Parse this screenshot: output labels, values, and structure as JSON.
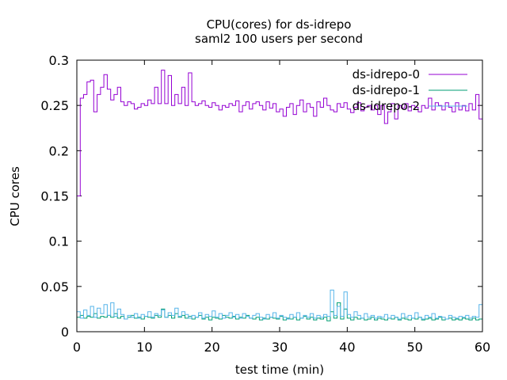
{
  "chart_data": {
    "type": "line",
    "title": "CPU(cores) for ds-idrepo",
    "subtitle": "saml2 100 users per second",
    "xlabel": "test time (min)",
    "ylabel": "CPU cores",
    "xlim": [
      0,
      60
    ],
    "ylim": [
      0,
      0.3
    ],
    "xticks": [
      0,
      10,
      20,
      30,
      40,
      50,
      60
    ],
    "yticks": [
      0,
      0.05,
      0.1,
      0.15,
      0.2,
      0.25,
      0.3
    ],
    "grid": false,
    "legend_position": "top-right",
    "series": [
      {
        "name": "ds-idrepo-0",
        "color": "#9400d3",
        "step": true,
        "x": [
          0,
          0.5,
          1,
          1.5,
          2,
          2.5,
          3,
          3.5,
          4,
          4.5,
          5,
          5.5,
          6,
          6.5,
          7,
          7.5,
          8,
          8.5,
          9,
          9.5,
          10,
          10.5,
          11,
          11.5,
          12,
          12.5,
          13,
          13.5,
          14,
          14.5,
          15,
          15.5,
          16,
          16.5,
          17,
          17.5,
          18,
          18.5,
          19,
          19.5,
          20,
          20.5,
          21,
          21.5,
          22,
          22.5,
          23,
          23.5,
          24,
          24.5,
          25,
          25.5,
          26,
          26.5,
          27,
          27.5,
          28,
          28.5,
          29,
          29.5,
          30,
          30.5,
          31,
          31.5,
          32,
          32.5,
          33,
          33.5,
          34,
          34.5,
          35,
          35.5,
          36,
          36.5,
          37,
          37.5,
          38,
          38.5,
          39,
          39.5,
          40,
          40.5,
          41,
          41.5,
          42,
          42.5,
          43,
          43.5,
          44,
          44.5,
          45,
          45.5,
          46,
          46.5,
          47,
          47.5,
          48,
          48.5,
          49,
          49.5,
          50,
          50.5,
          51,
          51.5,
          52,
          52.5,
          53,
          53.5,
          54,
          54.5,
          55,
          55.5,
          56,
          56.5,
          57,
          57.5,
          58,
          58.5,
          59,
          59.5
        ],
        "y": [
          0.15,
          0.258,
          0.262,
          0.276,
          0.278,
          0.243,
          0.262,
          0.27,
          0.284,
          0.268,
          0.256,
          0.262,
          0.27,
          0.254,
          0.25,
          0.254,
          0.252,
          0.246,
          0.248,
          0.252,
          0.25,
          0.256,
          0.252,
          0.27,
          0.252,
          0.289,
          0.252,
          0.283,
          0.25,
          0.262,
          0.252,
          0.27,
          0.25,
          0.286,
          0.254,
          0.25,
          0.252,
          0.255,
          0.25,
          0.248,
          0.253,
          0.25,
          0.245,
          0.25,
          0.248,
          0.252,
          0.25,
          0.255,
          0.243,
          0.25,
          0.254,
          0.246,
          0.252,
          0.254,
          0.25,
          0.245,
          0.254,
          0.247,
          0.252,
          0.243,
          0.246,
          0.238,
          0.248,
          0.252,
          0.24,
          0.25,
          0.256,
          0.243,
          0.252,
          0.248,
          0.238,
          0.254,
          0.248,
          0.258,
          0.25,
          0.245,
          0.243,
          0.252,
          0.248,
          0.253,
          0.246,
          0.242,
          0.248,
          0.253,
          0.244,
          0.248,
          0.25,
          0.245,
          0.25,
          0.24,
          0.25,
          0.23,
          0.243,
          0.252,
          0.235,
          0.25,
          0.247,
          0.252,
          0.244,
          0.25,
          0.248,
          0.243,
          0.25,
          0.247,
          0.258,
          0.245,
          0.253,
          0.25,
          0.245,
          0.253,
          0.248,
          0.243,
          0.253,
          0.245,
          0.25,
          0.244,
          0.252,
          0.245,
          0.262,
          0.235
        ]
      },
      {
        "name": "ds-idrepo-1",
        "color": "#009e73",
        "step": true,
        "x": [
          0,
          0.5,
          1,
          1.5,
          2,
          2.5,
          3,
          3.5,
          4,
          4.5,
          5,
          5.5,
          6,
          6.5,
          7,
          7.5,
          8,
          8.5,
          9,
          9.5,
          10,
          10.5,
          11,
          11.5,
          12,
          12.5,
          13,
          13.5,
          14,
          14.5,
          15,
          15.5,
          16,
          16.5,
          17,
          17.5,
          18,
          18.5,
          19,
          19.5,
          20,
          20.5,
          21,
          21.5,
          22,
          22.5,
          23,
          23.5,
          24,
          24.5,
          25,
          25.5,
          26,
          26.5,
          27,
          27.5,
          28,
          28.5,
          29,
          29.5,
          30,
          30.5,
          31,
          31.5,
          32,
          32.5,
          33,
          33.5,
          34,
          34.5,
          35,
          35.5,
          36,
          36.5,
          37,
          37.5,
          38,
          38.5,
          39,
          39.5,
          40,
          40.5,
          41,
          41.5,
          42,
          42.5,
          43,
          43.5,
          44,
          44.5,
          45,
          45.5,
          46,
          46.5,
          47,
          47.5,
          48,
          48.5,
          49,
          49.5,
          50,
          50.5,
          51,
          51.5,
          52,
          52.5,
          53,
          53.5,
          54,
          54.5,
          55,
          55.5,
          56,
          56.5,
          57,
          57.5,
          58,
          58.5,
          59,
          59.5
        ],
        "y": [
          0.016,
          0.018,
          0.015,
          0.017,
          0.016,
          0.02,
          0.015,
          0.017,
          0.016,
          0.018,
          0.016,
          0.02,
          0.015,
          0.017,
          0.014,
          0.016,
          0.018,
          0.015,
          0.016,
          0.014,
          0.017,
          0.016,
          0.015,
          0.018,
          0.016,
          0.025,
          0.016,
          0.018,
          0.015,
          0.02,
          0.016,
          0.018,
          0.015,
          0.017,
          0.014,
          0.016,
          0.018,
          0.014,
          0.016,
          0.013,
          0.016,
          0.015,
          0.014,
          0.018,
          0.016,
          0.015,
          0.017,
          0.014,
          0.016,
          0.015,
          0.018,
          0.015,
          0.014,
          0.016,
          0.013,
          0.015,
          0.014,
          0.016,
          0.015,
          0.014,
          0.017,
          0.013,
          0.015,
          0.014,
          0.016,
          0.013,
          0.015,
          0.017,
          0.014,
          0.016,
          0.013,
          0.015,
          0.014,
          0.016,
          0.012,
          0.022,
          0.015,
          0.032,
          0.014,
          0.025,
          0.015,
          0.013,
          0.016,
          0.014,
          0.015,
          0.013,
          0.014,
          0.016,
          0.013,
          0.015,
          0.014,
          0.013,
          0.015,
          0.014,
          0.016,
          0.013,
          0.015,
          0.014,
          0.013,
          0.015,
          0.014,
          0.016,
          0.013,
          0.014,
          0.015,
          0.013,
          0.014,
          0.016,
          0.013,
          0.014,
          0.015,
          0.013,
          0.014,
          0.013,
          0.015,
          0.014,
          0.013,
          0.015,
          0.013,
          0.014
        ]
      },
      {
        "name": "ds-idrepo-2",
        "color": "#56b4e9",
        "step": true,
        "x": [
          0,
          0.5,
          1,
          1.5,
          2,
          2.5,
          3,
          3.5,
          4,
          4.5,
          5,
          5.5,
          6,
          6.5,
          7,
          7.5,
          8,
          8.5,
          9,
          9.5,
          10,
          10.5,
          11,
          11.5,
          12,
          12.5,
          13,
          13.5,
          14,
          14.5,
          15,
          15.5,
          16,
          16.5,
          17,
          17.5,
          18,
          18.5,
          19,
          19.5,
          20,
          20.5,
          21,
          21.5,
          22,
          22.5,
          23,
          23.5,
          24,
          24.5,
          25,
          25.5,
          26,
          26.5,
          27,
          27.5,
          28,
          28.5,
          29,
          29.5,
          30,
          30.5,
          31,
          31.5,
          32,
          32.5,
          33,
          33.5,
          34,
          34.5,
          35,
          35.5,
          36,
          36.5,
          37,
          37.5,
          38,
          38.5,
          39,
          39.5,
          40,
          40.5,
          41,
          41.5,
          42,
          42.5,
          43,
          43.5,
          44,
          44.5,
          45,
          45.5,
          46,
          46.5,
          47,
          47.5,
          48,
          48.5,
          49,
          49.5,
          50,
          50.5,
          51,
          51.5,
          52,
          52.5,
          53,
          53.5,
          54,
          54.5,
          55,
          55.5,
          56,
          56.5,
          57,
          57.5,
          58,
          58.5,
          59,
          59.5
        ],
        "y": [
          0.022,
          0.015,
          0.024,
          0.018,
          0.028,
          0.016,
          0.026,
          0.02,
          0.03,
          0.018,
          0.032,
          0.017,
          0.025,
          0.019,
          0.014,
          0.018,
          0.016,
          0.02,
          0.015,
          0.019,
          0.017,
          0.022,
          0.016,
          0.02,
          0.018,
          0.024,
          0.016,
          0.021,
          0.018,
          0.026,
          0.017,
          0.022,
          0.019,
          0.015,
          0.018,
          0.016,
          0.021,
          0.015,
          0.019,
          0.017,
          0.023,
          0.016,
          0.02,
          0.015,
          0.018,
          0.021,
          0.016,
          0.019,
          0.015,
          0.02,
          0.017,
          0.015,
          0.018,
          0.02,
          0.016,
          0.014,
          0.019,
          0.016,
          0.021,
          0.015,
          0.018,
          0.016,
          0.014,
          0.019,
          0.016,
          0.021,
          0.015,
          0.018,
          0.016,
          0.02,
          0.015,
          0.018,
          0.016,
          0.019,
          0.017,
          0.046,
          0.018,
          0.028,
          0.017,
          0.044,
          0.019,
          0.016,
          0.022,
          0.018,
          0.015,
          0.02,
          0.016,
          0.018,
          0.015,
          0.017,
          0.016,
          0.019,
          0.015,
          0.018,
          0.016,
          0.014,
          0.02,
          0.016,
          0.018,
          0.015,
          0.021,
          0.016,
          0.014,
          0.018,
          0.016,
          0.02,
          0.015,
          0.017,
          0.016,
          0.014,
          0.018,
          0.016,
          0.015,
          0.017,
          0.016,
          0.018,
          0.015,
          0.017,
          0.016,
          0.03
        ]
      }
    ]
  }
}
